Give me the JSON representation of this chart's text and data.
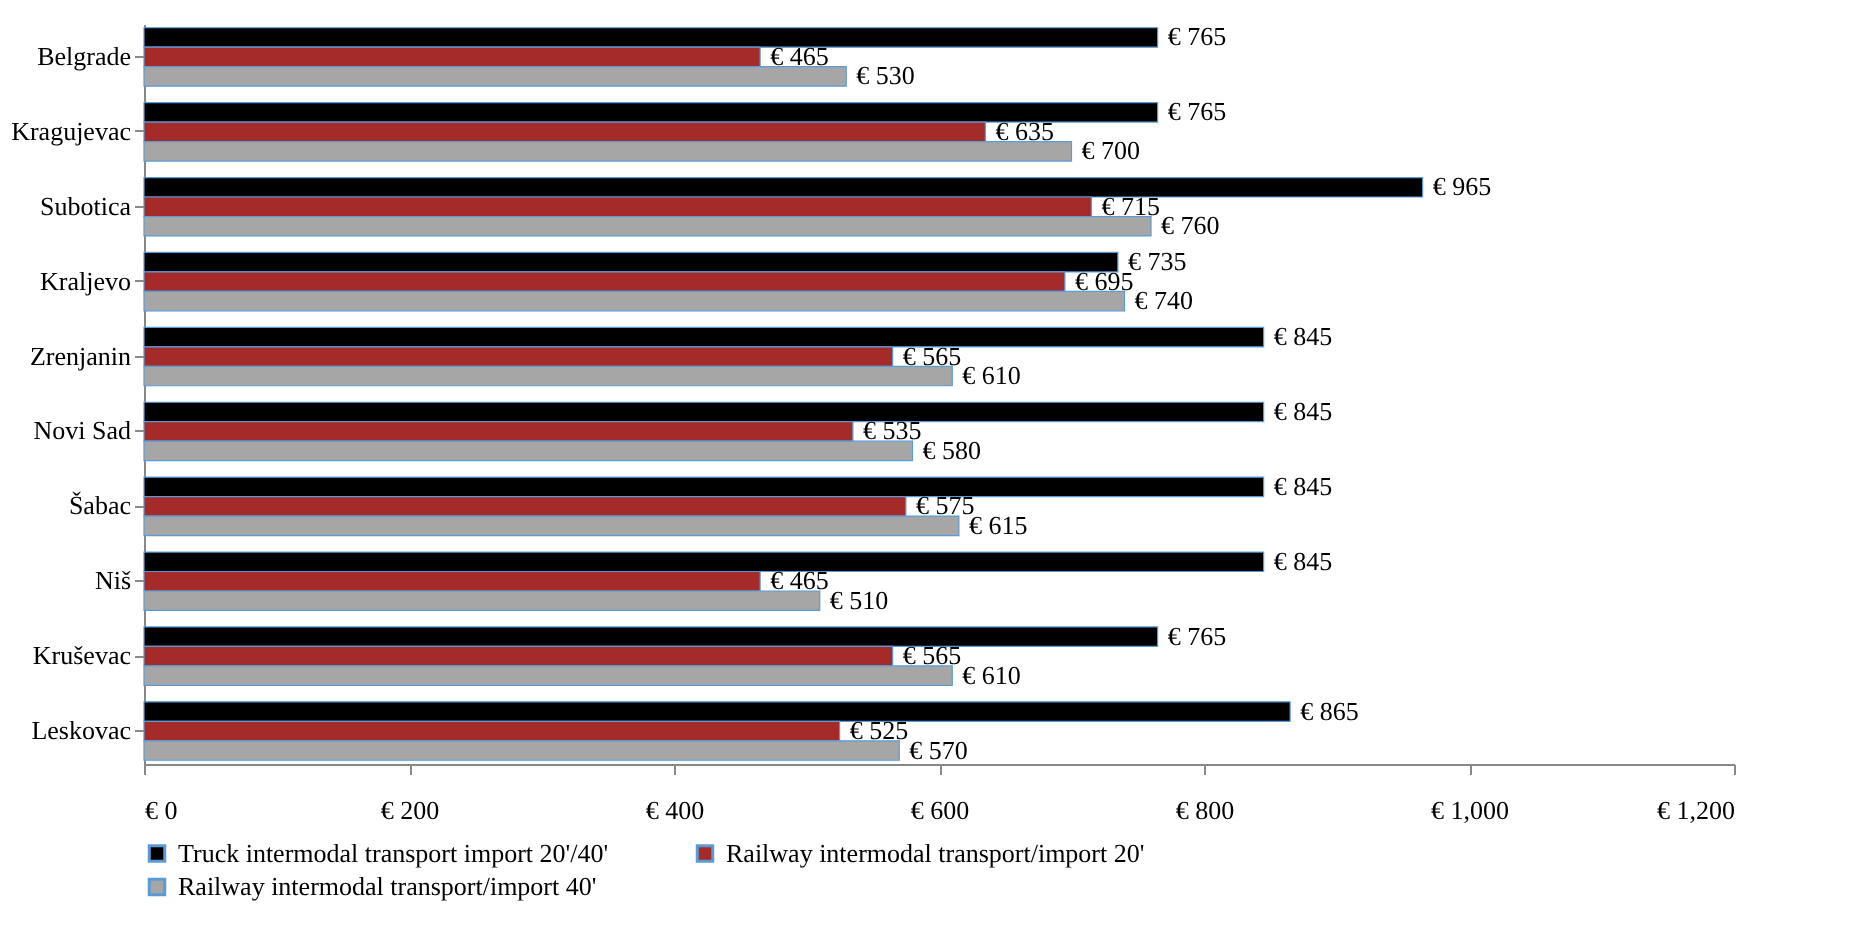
{
  "chart_data": {
    "type": "bar",
    "orientation": "horizontal",
    "categories": [
      "Belgrade",
      "Kragujevac",
      "Subotica",
      "Kraljevo",
      "Zrenjanin",
      "Novi Sad",
      "Šabac",
      "Niš",
      "Kruševac",
      "Leskovac"
    ],
    "series": [
      {
        "name": "Truck intermodal transport import 20'/40'",
        "color": "#000000",
        "values": [
          765,
          765,
          965,
          735,
          845,
          845,
          845,
          845,
          765,
          865
        ],
        "value_labels": [
          "€ 765",
          "€ 765",
          "€ 965",
          "€ 735",
          "€ 845",
          "€ 845",
          "€ 845",
          "€ 845",
          "€ 765",
          "€ 865"
        ]
      },
      {
        "name": "Railway intermodal transport/import 20'",
        "color": "#a52a2a",
        "values": [
          465,
          635,
          715,
          695,
          565,
          535,
          575,
          465,
          565,
          525
        ],
        "value_labels": [
          "€ 465",
          "€ 635",
          "€ 715",
          "€ 695",
          "€ 565",
          "€ 535",
          "€ 575",
          "€ 465",
          "€ 565",
          "€ 525"
        ]
      },
      {
        "name": "Railway intermodal transport/import 40'",
        "color": "#a6a6a6",
        "values": [
          530,
          700,
          760,
          740,
          610,
          580,
          615,
          510,
          610,
          570
        ],
        "value_labels": [
          "€ 530",
          "€ 700",
          "€ 760",
          "€ 740",
          "€ 610",
          "€ 580",
          "€ 615",
          "€ 510",
          "€ 610",
          "€ 570"
        ]
      }
    ],
    "xlim": [
      0,
      1200
    ],
    "xticks": [
      {
        "value": 0,
        "label": "€ 0"
      },
      {
        "value": 200,
        "label": "€ 200"
      },
      {
        "value": 400,
        "label": "€ 400"
      },
      {
        "value": 600,
        "label": "€ 600"
      },
      {
        "value": 800,
        "label": "€ 800"
      },
      {
        "value": 1000,
        "label": "€ 1,000"
      },
      {
        "value": 1200,
        "label": "€ 1,200"
      }
    ],
    "grid": false,
    "legend": "bottom"
  }
}
